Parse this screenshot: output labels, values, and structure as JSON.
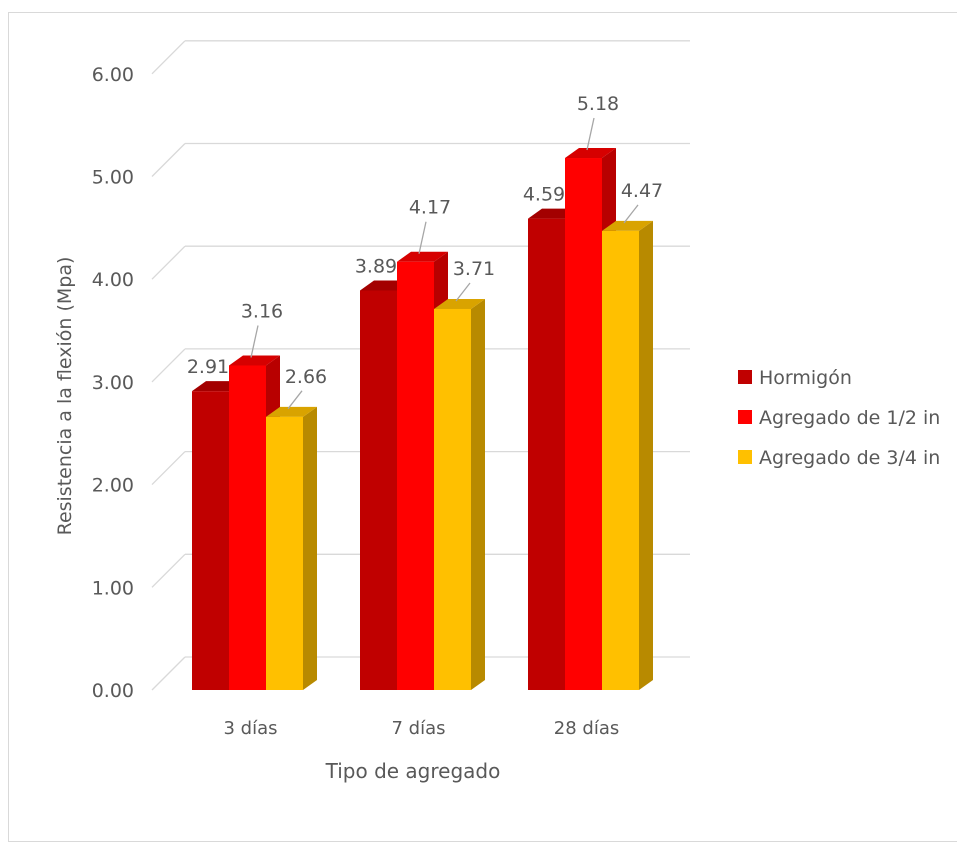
{
  "chart_data": {
    "type": "bar",
    "title": "",
    "xlabel": "Tipo de agregado",
    "ylabel": "Resistencia a la flexión (Mpa)",
    "ylim": [
      0,
      6
    ],
    "yticks": [
      "0.00",
      "1.00",
      "2.00",
      "3.00",
      "4.00",
      "5.00",
      "6.00"
    ],
    "categories": [
      "3 días",
      "7 días",
      "28 días"
    ],
    "series": [
      {
        "name": "Hormigón",
        "values": [
          2.91,
          3.89,
          4.59
        ],
        "color": "#c00000",
        "side": "#8e0000",
        "top": "#a30000"
      },
      {
        "name": "Agregado de 1/2 in",
        "values": [
          3.16,
          4.17,
          5.18
        ],
        "color": "#ff0000",
        "side": "#b80000",
        "top": "#d60000"
      },
      {
        "name": "Agregado de 3/4 in",
        "values": [
          2.66,
          3.71,
          4.47
        ],
        "color": "#ffc000",
        "side": "#b88a00",
        "top": "#d9a300"
      }
    ],
    "data_labels": [
      [
        "2.91",
        "3.89",
        "4.59"
      ],
      [
        "3.16",
        "4.17",
        "5.18"
      ],
      [
        "2.66",
        "3.71",
        "4.47"
      ]
    ],
    "grid": true,
    "legend": "right",
    "style": "3d-clustered-column"
  }
}
